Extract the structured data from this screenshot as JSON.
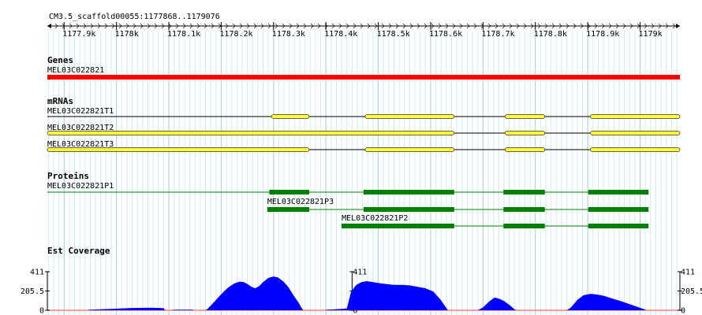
{
  "ruler": {
    "title": "CM3.5_scaffold00055:1177868..1179076",
    "ticks": [
      "1177.9k",
      "1178k",
      "1178.1k",
      "1178.2k",
      "1178.3k",
      "1178.4k",
      "1178.5k",
      "1178.6k",
      "1178.7k",
      "1178.8k",
      "1178.9k",
      "1179k"
    ],
    "start": 1177868,
    "end": 1179076
  },
  "tracks": {
    "genes": {
      "title": "Genes",
      "items": [
        {
          "label": "MEL03C022821",
          "start": 1177868,
          "end": 1179076,
          "color": "#ff0000"
        }
      ]
    },
    "mrnas": {
      "title": "mRNAs",
      "color": "#ffff33",
      "items": [
        {
          "label": "MEL03C022821T1",
          "start": 1177868,
          "end": 1179076,
          "exons": [
            [
              1178296,
              1178368
            ],
            [
              1178475,
              1178645
            ],
            [
              1178742,
              1178818
            ],
            [
              1178905,
              1179076
            ]
          ]
        },
        {
          "label": "MEL03C022821T2",
          "start": 1177868,
          "end": 1179076,
          "exons": [
            [
              1177868,
              1178645
            ],
            [
              1178742,
              1178818
            ],
            [
              1178905,
              1179076
            ]
          ]
        },
        {
          "label": "MEL03C022821T3",
          "start": 1177868,
          "end": 1179076,
          "exons": [
            [
              1177868,
              1178368
            ],
            [
              1178475,
              1178645
            ],
            [
              1178742,
              1178818
            ],
            [
              1178905,
              1179076
            ]
          ]
        }
      ]
    },
    "proteins": {
      "title": "Proteins",
      "color": "#008000",
      "items": [
        {
          "label": "MEL03C022821P1",
          "label_pos": "left",
          "start": 1177868,
          "end": 1179016,
          "exons": [
            [
              1178292,
              1178368
            ],
            [
              1178472,
              1178645
            ],
            [
              1178739,
              1178818
            ],
            [
              1178901,
              1179016
            ]
          ]
        },
        {
          "label": "MEL03C022821P3",
          "label_pos": "start",
          "start": 1178288,
          "end": 1179016,
          "exons": [
            [
              1178288,
              1178368
            ],
            [
              1178472,
              1178645
            ],
            [
              1178739,
              1178818
            ],
            [
              1178901,
              1179016
            ]
          ]
        },
        {
          "label": "MEL03C022821P2",
          "label_pos": "start",
          "start": 1178430,
          "end": 1179016,
          "exons": [
            [
              1178430,
              1178645
            ],
            [
              1178739,
              1178818
            ],
            [
              1178901,
              1179016
            ]
          ]
        }
      ]
    },
    "est": {
      "title": "Est Coverage",
      "y_labels": [
        "411",
        "205.5",
        "0"
      ],
      "y_max": 411,
      "fill": "#0000ff",
      "profile": [
        [
          1177868,
          0
        ],
        [
          1177945,
          0
        ],
        [
          1177948,
          5
        ],
        [
          1177970,
          10
        ],
        [
          1177990,
          15
        ],
        [
          1178010,
          20
        ],
        [
          1178030,
          24
        ],
        [
          1178050,
          26
        ],
        [
          1178065,
          27
        ],
        [
          1178080,
          25
        ],
        [
          1178090,
          22
        ],
        [
          1178093,
          0
        ],
        [
          1178105,
          0
        ],
        [
          1178110,
          5
        ],
        [
          1178145,
          6
        ],
        [
          1178148,
          0
        ],
        [
          1178170,
          0
        ],
        [
          1178175,
          20
        ],
        [
          1178185,
          80
        ],
        [
          1178195,
          140
        ],
        [
          1178205,
          200
        ],
        [
          1178215,
          250
        ],
        [
          1178225,
          285
        ],
        [
          1178235,
          305
        ],
        [
          1178243,
          300
        ],
        [
          1178250,
          280
        ],
        [
          1178258,
          250
        ],
        [
          1178265,
          235
        ],
        [
          1178272,
          255
        ],
        [
          1178280,
          300
        ],
        [
          1178290,
          345
        ],
        [
          1178300,
          360
        ],
        [
          1178308,
          350
        ],
        [
          1178318,
          310
        ],
        [
          1178328,
          250
        ],
        [
          1178338,
          160
        ],
        [
          1178348,
          80
        ],
        [
          1178354,
          20
        ],
        [
          1178357,
          0
        ],
        [
          1178398,
          0
        ],
        [
          1178402,
          5
        ],
        [
          1178420,
          12
        ],
        [
          1178430,
          14
        ],
        [
          1178440,
          20
        ],
        [
          1178448,
          200
        ],
        [
          1178458,
          270
        ],
        [
          1178468,
          300
        ],
        [
          1178478,
          310
        ],
        [
          1178490,
          300
        ],
        [
          1178500,
          290
        ],
        [
          1178515,
          280
        ],
        [
          1178530,
          270
        ],
        [
          1178545,
          270
        ],
        [
          1178560,
          265
        ],
        [
          1178575,
          250
        ],
        [
          1178590,
          235
        ],
        [
          1178605,
          200
        ],
        [
          1178618,
          120
        ],
        [
          1178628,
          40
        ],
        [
          1178633,
          0
        ],
        [
          1178690,
          0
        ],
        [
          1178700,
          30
        ],
        [
          1178712,
          95
        ],
        [
          1178722,
          135
        ],
        [
          1178730,
          125
        ],
        [
          1178740,
          100
        ],
        [
          1178752,
          50
        ],
        [
          1178760,
          10
        ],
        [
          1178763,
          0
        ],
        [
          1178860,
          0
        ],
        [
          1178868,
          30
        ],
        [
          1178880,
          110
        ],
        [
          1178892,
          160
        ],
        [
          1178905,
          175
        ],
        [
          1178915,
          170
        ],
        [
          1178930,
          155
        ],
        [
          1178950,
          120
        ],
        [
          1178965,
          95
        ],
        [
          1178980,
          65
        ],
        [
          1178995,
          35
        ],
        [
          1179008,
          10
        ],
        [
          1179012,
          0
        ],
        [
          1179076,
          0
        ]
      ]
    }
  }
}
